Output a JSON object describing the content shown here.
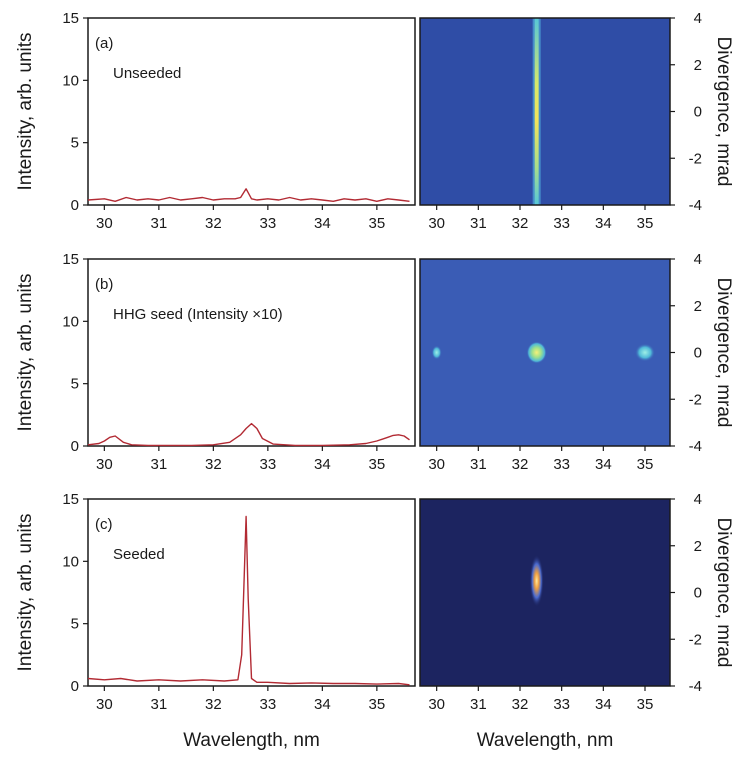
{
  "chart_data": [
    {
      "type": "line",
      "panel": "(a)",
      "annotation": "Unseeded",
      "xlabel": "",
      "ylabel": "Intensity, arb. units",
      "xlim": [
        29.7,
        35.7
      ],
      "ylim": [
        0,
        15
      ],
      "xticks": [
        30,
        31,
        32,
        33,
        34,
        35
      ],
      "yticks": [
        0,
        5,
        10,
        15
      ],
      "series": [
        {
          "color": "#b22a33",
          "x": [
            29.7,
            30.0,
            30.2,
            30.4,
            30.6,
            30.8,
            31.0,
            31.2,
            31.4,
            31.6,
            31.8,
            32.0,
            32.2,
            32.4,
            32.5,
            32.6,
            32.7,
            32.8,
            33.0,
            33.2,
            33.4,
            33.6,
            33.8,
            34.0,
            34.2,
            34.4,
            34.6,
            34.8,
            35.0,
            35.2,
            35.4,
            35.6
          ],
          "y": [
            0.4,
            0.5,
            0.3,
            0.6,
            0.4,
            0.5,
            0.4,
            0.6,
            0.4,
            0.5,
            0.6,
            0.4,
            0.5,
            0.5,
            0.6,
            1.3,
            0.5,
            0.4,
            0.5,
            0.4,
            0.6,
            0.4,
            0.5,
            0.4,
            0.3,
            0.5,
            0.4,
            0.5,
            0.3,
            0.5,
            0.4,
            0.3
          ]
        }
      ]
    },
    {
      "type": "heatmap",
      "panel": "(a) image",
      "xlabel": "",
      "ylabel": "Divergence, mrad",
      "xlim": [
        29.6,
        35.6
      ],
      "ylim": [
        -4,
        4
      ],
      "xticks": [
        30,
        31,
        32,
        33,
        34,
        35
      ],
      "yticks": [
        -4,
        -2,
        0,
        2,
        4
      ],
      "background": "#2f4da6",
      "features": [
        {
          "shape": "vertical-line",
          "x": 32.4,
          "y_range": [
            -4,
            4
          ],
          "note": "bright yellow-green stripe"
        }
      ]
    },
    {
      "type": "line",
      "panel": "(b)",
      "annotation": "HHG seed (Intensity ×10)",
      "xlabel": "",
      "ylabel": "Intensity, arb. units",
      "xlim": [
        29.7,
        35.7
      ],
      "ylim": [
        0,
        15
      ],
      "xticks": [
        30,
        31,
        32,
        33,
        34,
        35
      ],
      "yticks": [
        0,
        5,
        10,
        15
      ],
      "series": [
        {
          "color": "#b22a33",
          "x": [
            29.7,
            29.9,
            30.0,
            30.1,
            30.2,
            30.35,
            30.5,
            30.8,
            31.2,
            31.6,
            32.0,
            32.3,
            32.5,
            32.6,
            32.7,
            32.8,
            32.9,
            33.1,
            33.5,
            34.0,
            34.5,
            34.8,
            35.0,
            35.2,
            35.3,
            35.4,
            35.5,
            35.6
          ],
          "y": [
            0.1,
            0.2,
            0.4,
            0.7,
            0.8,
            0.3,
            0.1,
            0.05,
            0.05,
            0.05,
            0.1,
            0.3,
            0.9,
            1.4,
            1.8,
            1.4,
            0.6,
            0.15,
            0.05,
            0.05,
            0.1,
            0.2,
            0.4,
            0.7,
            0.85,
            0.9,
            0.8,
            0.5
          ]
        }
      ]
    },
    {
      "type": "heatmap",
      "panel": "(b) image",
      "xlabel": "",
      "ylabel": "Divergence, mrad",
      "xlim": [
        29.6,
        35.6
      ],
      "ylim": [
        -4,
        4
      ],
      "xticks": [
        30,
        31,
        32,
        33,
        34,
        35
      ],
      "yticks": [
        -4,
        -2,
        0,
        2,
        4
      ],
      "background": "#3a5cb5",
      "features": [
        {
          "shape": "spot",
          "x": 30.0,
          "y": 0.0,
          "note": "small cyan spot"
        },
        {
          "shape": "spot",
          "x": 32.4,
          "y": 0.0,
          "note": "bright yellow-green spot"
        },
        {
          "shape": "spot",
          "x": 35.0,
          "y": 0.0,
          "note": "cyan spot"
        }
      ]
    },
    {
      "type": "line",
      "panel": "(c)",
      "annotation": "Seeded",
      "xlabel": "Wavelength, nm",
      "ylabel": "Intensity, arb. units",
      "xlim": [
        29.7,
        35.7
      ],
      "ylim": [
        0,
        15
      ],
      "xticks": [
        30,
        31,
        32,
        33,
        34,
        35
      ],
      "yticks": [
        0,
        5,
        10,
        15
      ],
      "series": [
        {
          "color": "#b22a33",
          "x": [
            29.7,
            30.0,
            30.3,
            30.6,
            31.0,
            31.4,
            31.8,
            32.2,
            32.45,
            32.52,
            32.56,
            32.6,
            32.64,
            32.7,
            32.8,
            33.0,
            33.4,
            33.8,
            34.2,
            34.6,
            35.0,
            35.4,
            35.6
          ],
          "y": [
            0.6,
            0.5,
            0.6,
            0.4,
            0.5,
            0.4,
            0.5,
            0.4,
            0.5,
            2.5,
            8.0,
            13.6,
            7.0,
            0.6,
            0.3,
            0.3,
            0.2,
            0.25,
            0.2,
            0.2,
            0.15,
            0.2,
            0.1
          ]
        }
      ]
    },
    {
      "type": "heatmap",
      "panel": "(c) image",
      "xlabel": "Wavelength, nm",
      "ylabel": "Divergence, mrad",
      "xlim": [
        29.6,
        35.6
      ],
      "ylim": [
        -4,
        4
      ],
      "xticks": [
        30,
        31,
        32,
        33,
        34,
        35
      ],
      "yticks": [
        -4,
        -2,
        0,
        2,
        4
      ],
      "background": "#1c2460",
      "features": [
        {
          "shape": "spot",
          "x": 32.4,
          "y": 0.5,
          "note": "orange-yellow elongated spot"
        }
      ]
    }
  ]
}
